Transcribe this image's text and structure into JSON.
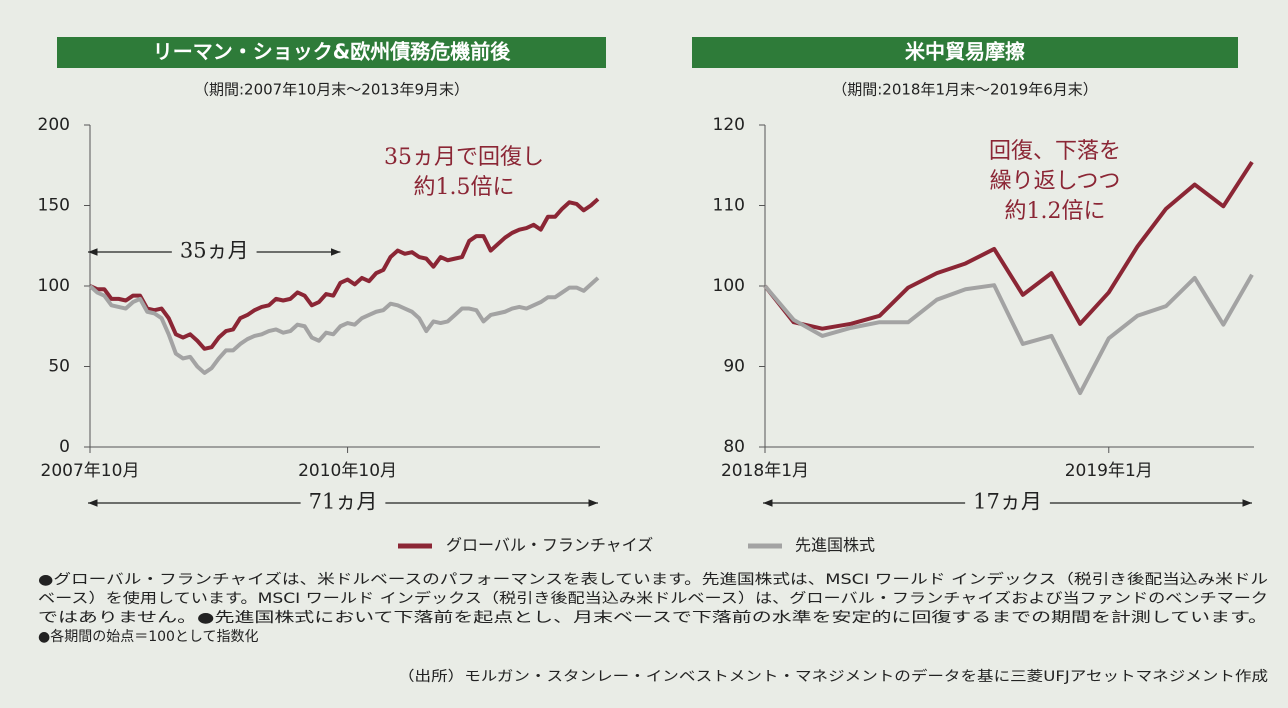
{
  "chart_data": [
    {
      "type": "line",
      "title": "リーマン・ショック&欧州債務危機前後",
      "subtitle": "（期間:2007年10月末～2013年9月末）",
      "xlim": [
        0,
        71
      ],
      "xticks": [
        {
          "value": 0,
          "label": "2007年10月"
        },
        {
          "value": 36,
          "label": "2010年10月"
        }
      ],
      "ylim": [
        0,
        200
      ],
      "yticks": [
        0,
        50,
        100,
        150,
        200
      ],
      "annotation": [
        "35ヵ月で回復し",
        "約1.5倍に"
      ],
      "spans": [
        {
          "label": "35ヵ月",
          "from": 0,
          "to": 35
        },
        {
          "label": "71ヵ月",
          "from": 0,
          "to": 71
        }
      ],
      "series": [
        {
          "name": "グローバル・フランチャイズ",
          "color": "#8b2635",
          "values": [
            100,
            98,
            98,
            92,
            92,
            91,
            94,
            94,
            86,
            85,
            86,
            80,
            70,
            68,
            70,
            66,
            61,
            62,
            68,
            72,
            73,
            80,
            82,
            85,
            87,
            88,
            92,
            91,
            92,
            96,
            94,
            88,
            90,
            95,
            94,
            102,
            104,
            101,
            105,
            103,
            108,
            110,
            118,
            122,
            120,
            121,
            118,
            117,
            112,
            118,
            116,
            117,
            118,
            128,
            131,
            131,
            122,
            126,
            130,
            133,
            135,
            136,
            138,
            135,
            143,
            143,
            148,
            152,
            151,
            147,
            150,
            154
          ]
        },
        {
          "name": "先進国株式",
          "color": "#a3a3a3",
          "values": [
            100,
            96,
            94,
            88,
            87,
            86,
            90,
            92,
            84,
            83,
            80,
            70,
            58,
            55,
            56,
            50,
            46,
            49,
            55,
            60,
            60,
            64,
            67,
            69,
            70,
            72,
            73,
            71,
            72,
            76,
            75,
            68,
            66,
            71,
            70,
            75,
            77,
            76,
            80,
            82,
            84,
            85,
            89,
            88,
            86,
            84,
            80,
            72,
            78,
            77,
            78,
            82,
            86,
            86,
            85,
            78,
            82,
            83,
            84,
            86,
            87,
            86,
            88,
            90,
            93,
            93,
            96,
            99,
            99,
            97,
            101,
            105
          ]
        }
      ]
    },
    {
      "type": "line",
      "title": "米中貿易摩擦",
      "subtitle": "（期間:2018年1月末～2019年6月末）",
      "xlim": [
        0,
        17
      ],
      "xticks": [
        {
          "value": 0,
          "label": "2018年1月"
        },
        {
          "value": 12,
          "label": "2019年1月"
        }
      ],
      "ylim": [
        80,
        120
      ],
      "yticks": [
        80,
        90,
        100,
        110,
        120
      ],
      "annotation": [
        "回復、下落を",
        "繰り返しつつ",
        "約1.2倍に"
      ],
      "spans": [
        {
          "label": "17ヵ月",
          "from": 0,
          "to": 17
        }
      ],
      "series": [
        {
          "color": "#8b2635",
          "values": [
            100,
            95.5,
            94.7,
            95.3,
            96.3,
            99.8,
            101.6,
            102.8,
            104.6,
            98.9,
            101.6,
            95.3,
            99.2,
            104.9,
            109.6,
            112.6,
            109.9,
            115.4
          ]
        },
        {
          "color": "#a3a3a3",
          "values": [
            100,
            95.8,
            93.8,
            94.8,
            95.5,
            95.5,
            98.3,
            99.6,
            100.1,
            92.8,
            93.8,
            86.7,
            93.5,
            96.3,
            97.5,
            101.0,
            95.2,
            101.4
          ]
        }
      ]
    }
  ],
  "notes": [
    "●グローバル・フランチャイズは、米ドルベースのパフォーマンスを表しています。先進国株式は、MSCI ワールド インデックス（税引き後配当込み米ドル",
    "ベース）を使用しています。MSCI ワールド インデックス（税引き後配当込み米ドルベース）は、グローバル・フランチャイズおよび当ファンドのベンチマーク",
    "ではありません。●先進国株式において下落前を起点とし、月末ベースで下落前の水準を安定的に回復するまでの期間を計測しています。",
    "●各期間の始点＝100として指数化"
  ],
  "source": "（出所）モルガン・スタンレー・インベストメント・マネジメントのデータを基に三菱UFJアセットマネジメント作成"
}
